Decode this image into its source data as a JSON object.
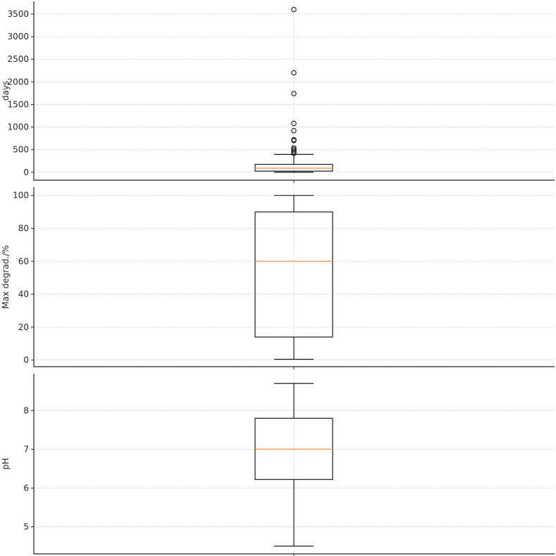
{
  "chart_data": [
    {
      "type": "box",
      "ylabel": "days",
      "ylim": [
        -175,
        3780
      ],
      "yticks": [
        0,
        500,
        1000,
        1500,
        2000,
        2500,
        3000,
        3500
      ],
      "box": {
        "whislo": 0,
        "q1": 25,
        "med": 90,
        "q3": 175,
        "whishi": 395
      },
      "fliers": [
        420,
        450,
        480,
        510,
        540,
        700,
        720,
        920,
        1080,
        1740,
        2200,
        3600
      ],
      "grid": true
    },
    {
      "type": "box",
      "ylabel": "Max degrad./%",
      "ylim": [
        -4,
        105
      ],
      "yticks": [
        0,
        20,
        40,
        60,
        80,
        100
      ],
      "box": {
        "whislo": 0.5,
        "q1": 14,
        "med": 60,
        "q3": 90,
        "whishi": 100
      },
      "fliers": [],
      "grid": true
    },
    {
      "type": "box",
      "ylabel": "pH",
      "ylim": [
        4.3,
        8.95
      ],
      "yticks": [
        5,
        6,
        7,
        8
      ],
      "box": {
        "whislo": 4.5,
        "q1": 6.22,
        "med": 7.0,
        "q3": 7.8,
        "whishi": 8.7
      },
      "fliers": [],
      "grid": true
    }
  ]
}
